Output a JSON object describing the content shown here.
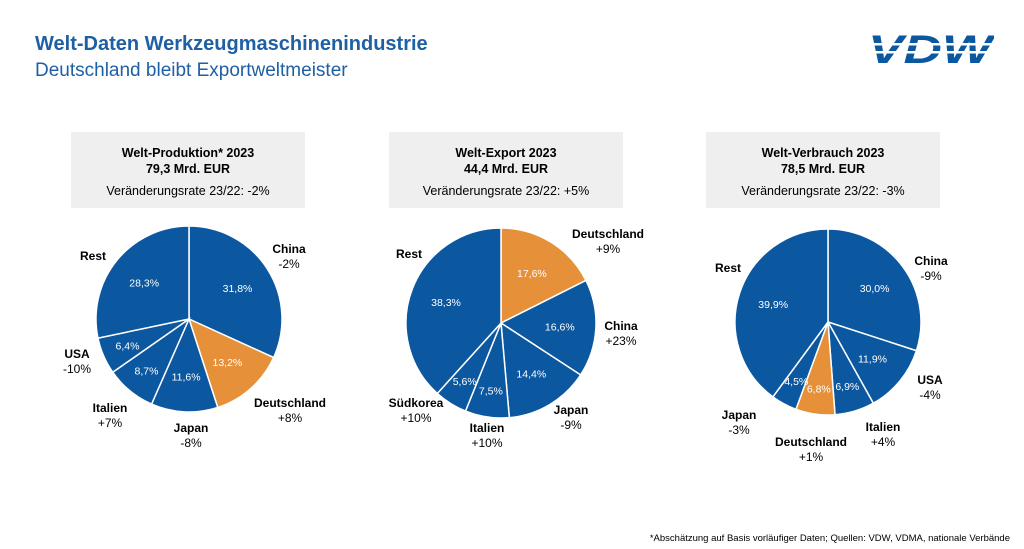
{
  "header": {
    "title": "Welt-Daten Werkzeugmaschinenindustrie",
    "subtitle": "Deutschland bleibt Exportweltmeister",
    "logo_text": "VDW"
  },
  "colors": {
    "blue": "#0b57a0",
    "orange": "#e69139",
    "panel": "#efefef",
    "heading": "#1f5fa3"
  },
  "chart_data": [
    {
      "type": "pie",
      "title": "Welt-Produktion* 2023",
      "subtitle": "79,3 Mrd. EUR",
      "note": "Veränderungsrate 23/22: -2%",
      "slices": [
        {
          "name": "China",
          "value": 31.8,
          "label": "31,8%",
          "change": "-2%"
        },
        {
          "name": "Deutschland",
          "value": 13.2,
          "label": "13,2%",
          "change": "+8%",
          "highlight": true
        },
        {
          "name": "Japan",
          "value": 11.6,
          "label": "11,6%",
          "change": "-8%"
        },
        {
          "name": "Italien",
          "value": 8.7,
          "label": "8,7%",
          "change": "+7%"
        },
        {
          "name": "USA",
          "value": 6.4,
          "label": "6,4%",
          "change": "-10%"
        },
        {
          "name": "Rest",
          "value": 28.3,
          "label": "28,3%",
          "change": ""
        }
      ]
    },
    {
      "type": "pie",
      "title": "Welt-Export 2023",
      "subtitle": "44,4 Mrd. EUR",
      "note": "Veränderungsrate 23/22: +5%",
      "slices": [
        {
          "name": "Deutschland",
          "value": 17.6,
          "label": "17,6%",
          "change": "+9%",
          "highlight": true
        },
        {
          "name": "China",
          "value": 16.6,
          "label": "16,6%",
          "change": "+23%"
        },
        {
          "name": "Japan",
          "value": 14.4,
          "label": "14,4%",
          "change": "-9%"
        },
        {
          "name": "Italien",
          "value": 7.5,
          "label": "7,5%",
          "change": "+10%"
        },
        {
          "name": "Südkorea",
          "value": 5.6,
          "label": "5,6%",
          "change": "+10%"
        },
        {
          "name": "Rest",
          "value": 38.3,
          "label": "38,3%",
          "change": ""
        }
      ]
    },
    {
      "type": "pie",
      "title": "Welt-Verbrauch 2023",
      "subtitle": "78,5 Mrd. EUR",
      "note": "Veränderungsrate 23/22: -3%",
      "slices": [
        {
          "name": "China",
          "value": 30.0,
          "label": "30,0%",
          "change": "-9%"
        },
        {
          "name": "USA",
          "value": 11.9,
          "label": "11,9%",
          "change": "-4%"
        },
        {
          "name": "Italien",
          "value": 6.9,
          "label": "6,9%",
          "change": "+4%"
        },
        {
          "name": "Deutschland",
          "value": 6.8,
          "label": "6,8%",
          "change": "+1%",
          "highlight": true
        },
        {
          "name": "Japan",
          "value": 4.5,
          "label": "4,5%",
          "change": "-3%"
        },
        {
          "name": "Rest",
          "value": 39.9,
          "label": "39,9%",
          "change": ""
        }
      ]
    }
  ],
  "footnote": "*Abschätzung auf Basis vorläufiger Daten; Quellen: VDW, VDMA, nationale Verbände"
}
